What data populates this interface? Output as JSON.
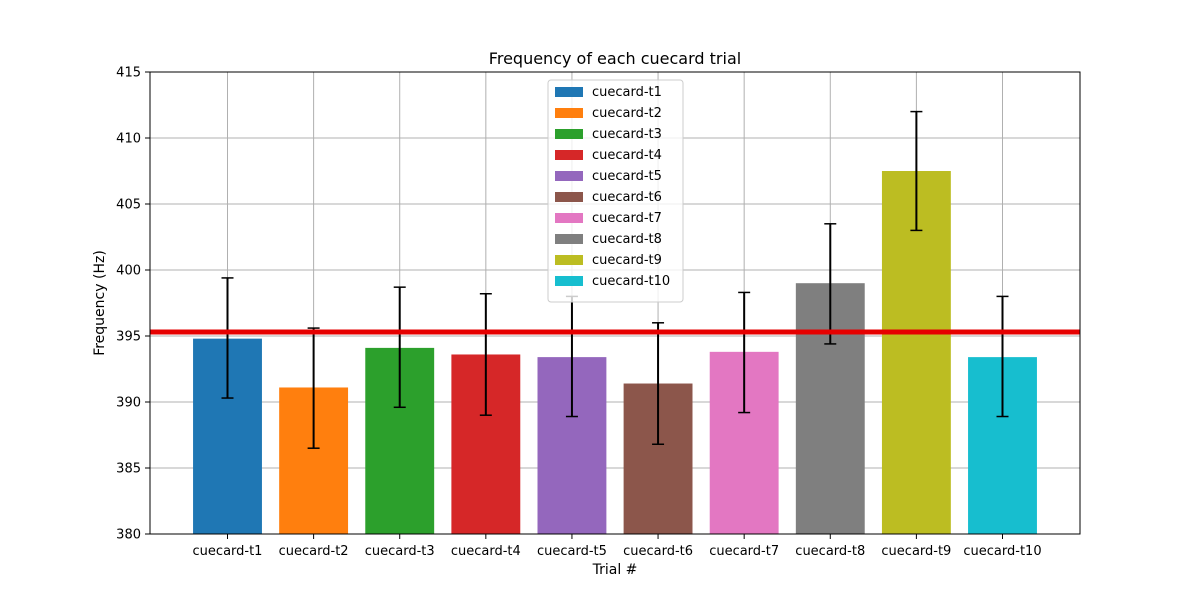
{
  "chart_data": {
    "type": "bar",
    "title": "Frequency of each cuecard trial",
    "xlabel": "Trial #",
    "ylabel": "Frequency (Hz)",
    "ylim": [
      380,
      415
    ],
    "yticks": [
      380,
      385,
      390,
      395,
      400,
      405,
      410,
      415
    ],
    "categories": [
      "cuecard-t1",
      "cuecard-t2",
      "cuecard-t3",
      "cuecard-t4",
      "cuecard-t5",
      "cuecard-t6",
      "cuecard-t7",
      "cuecard-t8",
      "cuecard-t9",
      "cuecard-t10"
    ],
    "values": [
      394.8,
      391.1,
      394.1,
      393.6,
      393.4,
      391.4,
      393.8,
      399.0,
      407.5,
      393.4
    ],
    "error_low": [
      390.3,
      386.5,
      389.6,
      389.0,
      388.9,
      386.8,
      389.2,
      394.4,
      403.0,
      388.9
    ],
    "error_high": [
      399.4,
      395.6,
      398.7,
      398.2,
      398.0,
      396.0,
      398.3,
      403.5,
      412.0,
      398.0
    ],
    "reference_line": 395.3,
    "reference_color": "#e60000",
    "colors": [
      "#1f77b4",
      "#ff7f0e",
      "#2ca02c",
      "#d62728",
      "#9467bd",
      "#8c564b",
      "#e377c2",
      "#7f7f7f",
      "#bcbd22",
      "#17becf"
    ],
    "legend": {
      "placement": "top-center",
      "entries": [
        "cuecard-t1",
        "cuecard-t2",
        "cuecard-t3",
        "cuecard-t4",
        "cuecard-t5",
        "cuecard-t6",
        "cuecard-t7",
        "cuecard-t8",
        "cuecard-t9",
        "cuecard-t10"
      ]
    },
    "grid": true
  }
}
